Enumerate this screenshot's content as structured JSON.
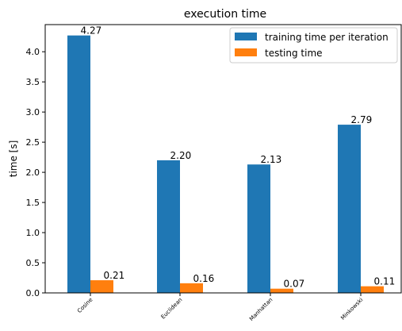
{
  "chart_data": {
    "type": "bar",
    "title": "execution time",
    "xlabel": "",
    "ylabel": "time [s]",
    "categories": [
      "Cosine",
      "Euclidean",
      "Manhattan",
      "Minkowski"
    ],
    "series": [
      {
        "name": "training time per iteration",
        "color": "#1f77b4",
        "values": [
          4.27,
          2.2,
          2.13,
          2.79
        ],
        "labels": [
          "4.27",
          "2.20",
          "2.13",
          "2.79"
        ]
      },
      {
        "name": "testing time",
        "color": "#ff7f0e",
        "values": [
          0.21,
          0.16,
          0.07,
          0.11
        ],
        "labels": [
          "0.21",
          "0.16",
          "0.07",
          "0.11"
        ]
      }
    ],
    "ylim": [
      0,
      4.45
    ],
    "yticks": [
      0.0,
      0.5,
      1.0,
      1.5,
      2.0,
      2.5,
      3.0,
      3.5,
      4.0
    ],
    "ytick_labels": [
      "0.0",
      "0.5",
      "1.0",
      "1.5",
      "2.0",
      "2.5",
      "3.0",
      "3.5",
      "4.0"
    ],
    "grid": false,
    "legend_position": "top-right"
  }
}
